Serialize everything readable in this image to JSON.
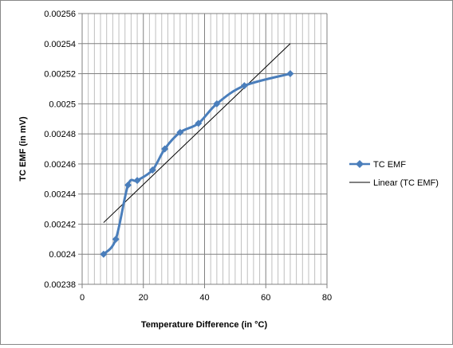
{
  "chart_data": {
    "type": "line",
    "title": "",
    "xlabel": "Temperature Difference (in °C)",
    "ylabel": "TC EMF (in mV)",
    "xlim": [
      0,
      80
    ],
    "ylim": [
      0.00238,
      0.00256
    ],
    "x_ticks": [
      0,
      20,
      40,
      60,
      80
    ],
    "x_tick_labels": [
      "0",
      "20",
      "40",
      "60",
      "80"
    ],
    "y_ticks": [
      0.00238,
      0.0024,
      0.00242,
      0.00244,
      0.00246,
      0.00248,
      0.0025,
      0.00252,
      0.00254,
      0.00256
    ],
    "y_tick_labels": [
      "0.00238",
      "0.0024",
      "0.00242",
      "0.00244",
      "0.00246",
      "0.00248",
      "0.0025",
      "0.00252",
      "0.00254",
      "0.00256"
    ],
    "grid": {
      "major_vertical": true,
      "minor_vertical": true,
      "horizontal": true
    },
    "legend_position": "right",
    "series": [
      {
        "name": "TC EMF",
        "color": "#4a7ebb",
        "marker": "diamond",
        "style": "smoothed",
        "x": [
          7,
          11,
          15,
          18,
          23,
          27,
          32,
          38,
          44,
          53,
          68
        ],
        "y": [
          0.0024,
          0.00241,
          0.002446,
          0.002449,
          0.002456,
          0.00247,
          0.002481,
          0.002487,
          0.0025,
          0.002512,
          0.00252
        ]
      },
      {
        "name": "Linear (TC EMF)",
        "color": "#000000",
        "marker": "none",
        "style": "trendline",
        "x": [
          7,
          68
        ],
        "y": [
          0.002421,
          0.00254
        ]
      }
    ]
  }
}
